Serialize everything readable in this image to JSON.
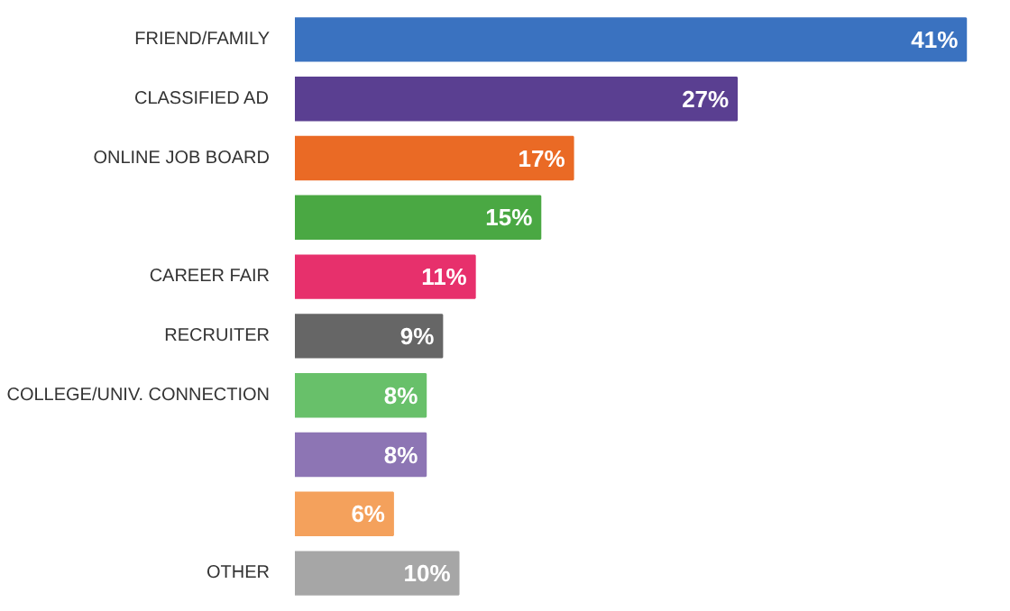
{
  "chart_data": {
    "type": "bar",
    "orientation": "horizontal",
    "categories": [
      "FRIEND/FAMILY",
      "CLASSIFIED AD",
      "ONLINE JOB BOARD",
      null,
      "CAREER FAIR",
      "RECRUITER",
      "COLLEGE/UNIV. CONNECTION",
      null,
      null,
      "OTHER"
    ],
    "values": [
      41,
      27,
      17,
      15,
      11,
      9,
      8,
      8,
      6,
      10
    ],
    "colors": [
      "#3a72c0",
      "#5a3f91",
      "#ea6a25",
      "#4aa843",
      "#e7306c",
      "#666666",
      "#68c06a",
      "#8d75b4",
      "#f4a15c",
      "#a6a6a6"
    ],
    "value_labels": [
      "41%",
      "27%",
      "17%",
      "15%",
      "11%",
      "9%",
      "8%",
      "8%",
      "6%",
      "10%"
    ],
    "grid": false
  }
}
